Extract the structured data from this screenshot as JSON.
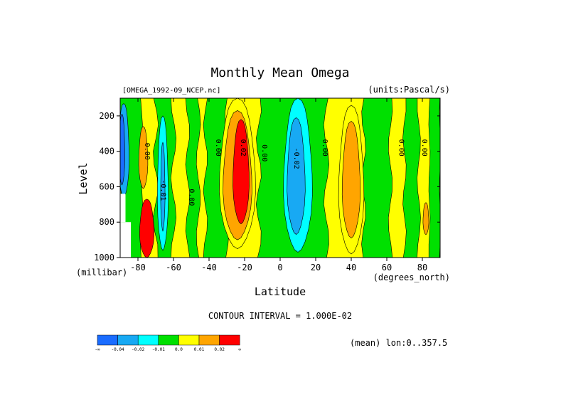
{
  "chart_data": {
    "type": "heatmap",
    "title": "Monthly Mean Omega",
    "subtitle_left": "[OMEGA_1992-09_NCEP.nc]",
    "subtitle_right": "(units:Pascal/s)",
    "xlabel": "Latitude",
    "x_units": "(degrees_north)",
    "ylabel": "Level",
    "y_units": "(millibar)",
    "xlim": [
      -90,
      90
    ],
    "ylim": [
      1000,
      100
    ],
    "x_ticks": [
      -80,
      -60,
      -40,
      -20,
      0,
      20,
      40,
      60,
      80
    ],
    "x_tick_labels": [
      "-80",
      "-60",
      "-40",
      "-20",
      "0",
      "20",
      "40",
      "60",
      "80"
    ],
    "y_ticks": [
      200,
      400,
      600,
      800,
      1000
    ],
    "y_tick_labels": [
      "200",
      "400",
      "600",
      "800",
      "1000"
    ],
    "contour_interval_text": "CONTOUR INTERVAL = 1.000E-02",
    "mean_text": "(mean) lon:0..357.5",
    "levels": [
      -0.04,
      -0.02,
      -0.01,
      0.0,
      0.01,
      0.02
    ],
    "contour_labels": [
      {
        "text": "0.00",
        "lat": -76,
        "lev": 400
      },
      {
        "text": "-0.01",
        "lat": -67,
        "lev": 620
      },
      {
        "text": "0.00",
        "lat": -51,
        "lev": 660
      },
      {
        "text": "0.00",
        "lat": -36,
        "lev": 380
      },
      {
        "text": "0.02",
        "lat": -22,
        "lev": 380
      },
      {
        "text": "0.00",
        "lat": -10,
        "lev": 410
      },
      {
        "text": "-0.02",
        "lat": 8,
        "lev": 440
      },
      {
        "text": "0.00",
        "lat": 24,
        "lev": 380
      },
      {
        "text": "0.00",
        "lat": 67,
        "lev": 380
      },
      {
        "text": "0.00",
        "lat": 80,
        "lev": 380
      }
    ],
    "colorbar": {
      "colors": [
        "#1a6cff",
        "#18a9f3",
        "#00ffff",
        "#00e000",
        "#ffff00",
        "#ffa500",
        "#ff0000"
      ],
      "tick_labels": [
        "-∞",
        "-0.04",
        "-0.02",
        "-0.01",
        "0.0",
        "0.01",
        "0.02",
        "∞"
      ]
    }
  }
}
